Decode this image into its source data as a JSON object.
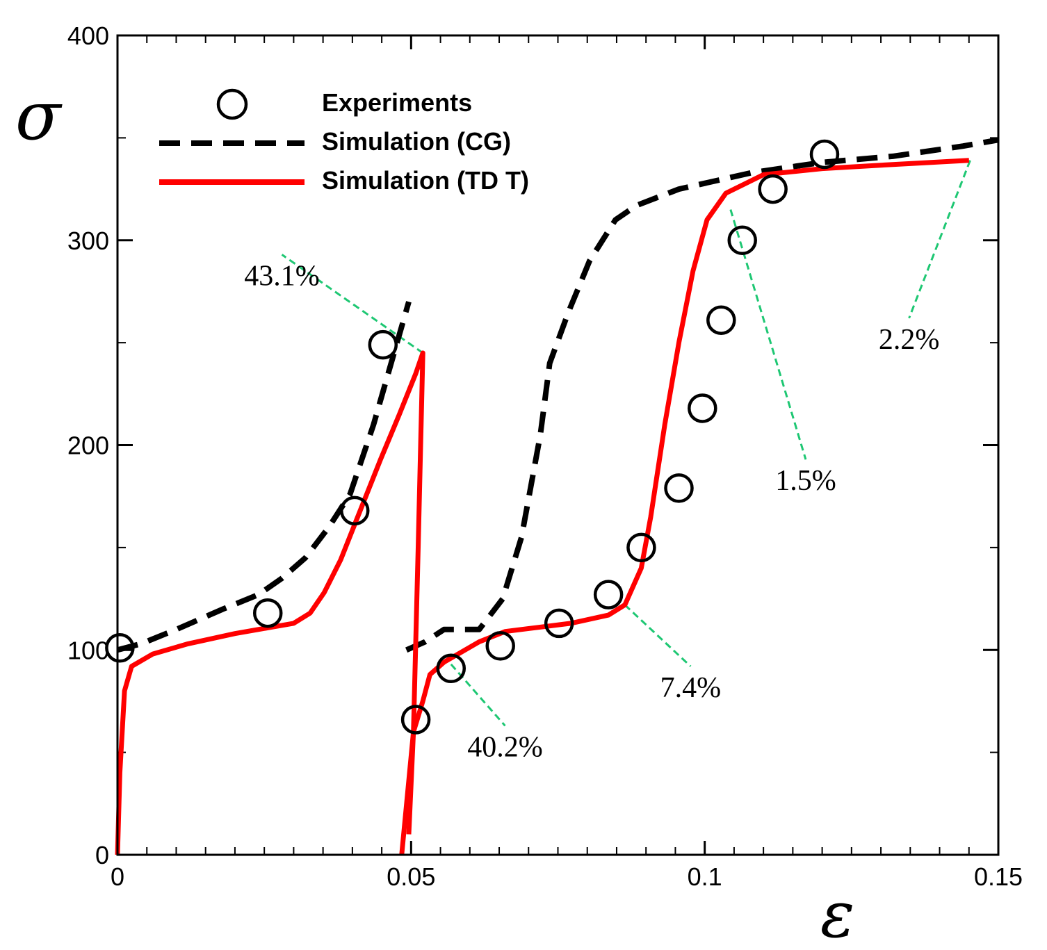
{
  "chart_data": {
    "type": "line",
    "ylabel": "σ",
    "xlabel": "ε",
    "xlim": [
      0,
      0.15
    ],
    "ylim": [
      0,
      400
    ],
    "x_ticks": [
      "0",
      "0.05",
      "0.1",
      "0.15"
    ],
    "y_ticks": [
      "0",
      "100",
      "200",
      "300",
      "400"
    ],
    "legend": {
      "position": "top-left",
      "entries": [
        {
          "label": "Experiments",
          "style": "circle-marker"
        },
        {
          "label": "Simulation (CG)",
          "style": "dashed-black"
        },
        {
          "label": "Simulation (TD T)",
          "style": "solid-red"
        }
      ]
    },
    "series": [
      {
        "name": "Experiments",
        "kind": "scatter",
        "color": "#000000",
        "points": [
          [
            0.0004,
            101
          ],
          [
            0.0256,
            118
          ],
          [
            0.0404,
            168
          ],
          [
            0.0452,
            249
          ],
          [
            0.0508,
            66
          ],
          [
            0.0568,
            91
          ],
          [
            0.0652,
            102
          ],
          [
            0.0752,
            113
          ],
          [
            0.0836,
            127
          ],
          [
            0.0892,
            150
          ],
          [
            0.0956,
            179
          ],
          [
            0.0996,
            218
          ],
          [
            0.1028,
            261
          ],
          [
            0.1064,
            300
          ],
          [
            0.1116,
            325
          ],
          [
            0.1204,
            342
          ]
        ]
      },
      {
        "name": "Simulation (CG)",
        "kind": "dashed",
        "color": "#000000",
        "segments": [
          [
            [
              0.0,
              100
            ],
            [
              0.004,
              103
            ],
            [
              0.01,
              110
            ],
            [
              0.018,
              120
            ],
            [
              0.024,
              127
            ],
            [
              0.028,
              135
            ],
            [
              0.032,
              145
            ],
            [
              0.036,
              160
            ],
            [
              0.0396,
              176
            ],
            [
              0.0436,
              210
            ],
            [
              0.0476,
              250
            ],
            [
              0.0496,
              270
            ]
          ],
          [
            [
              0.0492,
              100
            ],
            [
              0.0524,
              104
            ],
            [
              0.0556,
              110
            ],
            [
              0.0616,
              110
            ],
            [
              0.0656,
              125
            ],
            [
              0.0688,
              155
            ],
            [
              0.072,
              205
            ],
            [
              0.0736,
              240
            ],
            [
              0.0768,
              265
            ],
            [
              0.0804,
              290
            ],
            [
              0.0848,
              310
            ],
            [
              0.0884,
              317
            ],
            [
              0.0956,
              325
            ],
            [
              0.108,
              333
            ],
            [
              0.12,
              338
            ],
            [
              0.132,
              341
            ],
            [
              0.144,
              346
            ],
            [
              0.15,
              349
            ]
          ]
        ]
      },
      {
        "name": "Simulation (TD T)",
        "kind": "solid",
        "color": "#ff0000",
        "segments": [
          [
            [
              0.0,
              0
            ],
            [
              0.0004,
              40
            ],
            [
              0.0012,
              80
            ],
            [
              0.0024,
              92
            ],
            [
              0.006,
              98
            ],
            [
              0.012,
              103
            ],
            [
              0.02,
              108
            ],
            [
              0.026,
              111
            ],
            [
              0.03,
              113
            ],
            [
              0.0328,
              118
            ],
            [
              0.0352,
              128
            ],
            [
              0.038,
              144
            ],
            [
              0.0416,
              170
            ],
            [
              0.0448,
              193
            ],
            [
              0.048,
              215
            ],
            [
              0.0508,
              235
            ],
            [
              0.052,
              245
            ],
            [
              0.0512,
              150
            ],
            [
              0.0504,
              60
            ],
            [
              0.0496,
              10
            ]
          ],
          [
            [
              0.0484,
              0
            ],
            [
              0.0504,
              60
            ],
            [
              0.052,
              75
            ],
            [
              0.0532,
              88
            ],
            [
              0.0556,
              94
            ],
            [
              0.0616,
              104
            ],
            [
              0.066,
              109
            ],
            [
              0.0716,
              111
            ],
            [
              0.0772,
              113
            ],
            [
              0.0836,
              117
            ],
            [
              0.0864,
              122
            ],
            [
              0.0892,
              140
            ],
            [
              0.0908,
              165
            ],
            [
              0.0932,
              210
            ],
            [
              0.0956,
              250
            ],
            [
              0.098,
              285
            ],
            [
              0.1004,
              310
            ],
            [
              0.1036,
              323
            ],
            [
              0.11,
              332
            ],
            [
              0.12,
              335
            ],
            [
              0.132,
              337
            ],
            [
              0.145,
              339
            ]
          ]
        ]
      }
    ],
    "annotations": [
      {
        "text": "43.1%",
        "anchor": [
          0.052,
          245
        ],
        "label_at": [
          0.028,
          293
        ]
      },
      {
        "text": "40.2%",
        "anchor": [
          0.0568,
          93
        ],
        "label_at": [
          0.066,
          63
        ]
      },
      {
        "text": "7.4%",
        "anchor": [
          0.0864,
          122
        ],
        "label_at": [
          0.0976,
          92
        ]
      },
      {
        "text": "1.5%",
        "anchor": [
          0.1044,
          315
        ],
        "label_at": [
          0.1172,
          193
        ]
      },
      {
        "text": "2.2%",
        "anchor": [
          0.1452,
          339
        ],
        "label_at": [
          0.1348,
          262
        ]
      }
    ]
  }
}
